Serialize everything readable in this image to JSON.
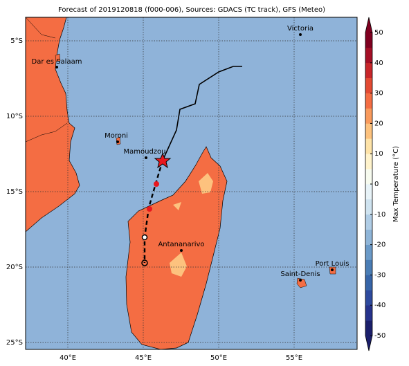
{
  "map": {
    "title": "Forecast of 2019120818 (f000-006), Sources: GDACS (TC track), GFS (Meteo)",
    "lon_labels": [
      "40°E",
      "45°E",
      "50°E",
      "55°E"
    ],
    "lat_labels": [
      "5°S",
      "10°S",
      "15°S",
      "20°S",
      "25°S"
    ],
    "places": [
      "Victoria",
      "Dar es Salaam",
      "Moroni",
      "Mamoudzou",
      "Antananarivo",
      "Saint-Denis",
      "Port Louis"
    ],
    "colorbar": {
      "label": "Max Temperature (°C)",
      "lim": [
        -50,
        50
      ],
      "ticks": [
        -50,
        -40,
        -30,
        -20,
        -10,
        0,
        10,
        20,
        30,
        40,
        50
      ],
      "colors": [
        "#1b1f6b",
        "#26338c",
        "#2e4a9e",
        "#3765a8",
        "#4a7db5",
        "#6b9ac8",
        "#8fb5d8",
        "#b0cde6",
        "#cfe3f0",
        "#e8f3f8",
        "#f7fbef",
        "#fff3cc",
        "#fee3a8",
        "#fdc27e",
        "#f99a5c",
        "#f46d43",
        "#e34a33",
        "#c8262a",
        "#a50f26",
        "#7f0020"
      ]
    }
  }
}
